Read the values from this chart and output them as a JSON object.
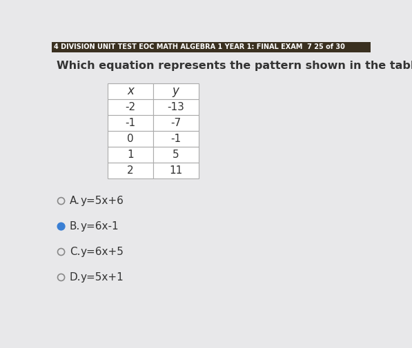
{
  "header_text": "4 DIVISION UNIT TEST EOC MATH ALGEBRA 1 YEAR 1: FINAL EXAM  7 25 of 30",
  "question_text": "Which equation represents the pattern shown in the table?",
  "table_headers": [
    "x",
    "y"
  ],
  "table_data": [
    [
      "-2",
      "-13"
    ],
    [
      "-1",
      "-7"
    ],
    [
      "0",
      "-1"
    ],
    [
      "1",
      "5"
    ],
    [
      "2",
      "11"
    ]
  ],
  "options": [
    {
      "label": "A.",
      "equation": "y=5x+6",
      "selected": false
    },
    {
      "label": "B.",
      "equation": "y=6x-1",
      "selected": true
    },
    {
      "label": "C.",
      "equation": "y=6x+5",
      "selected": false
    },
    {
      "label": "D.",
      "equation": "y=5x+1",
      "selected": false
    }
  ],
  "header_bg": "#3a3020",
  "header_text_color": "#ffffff",
  "body_bg": "#e8e8ea",
  "selected_color": "#3a7fd4",
  "unselected_color": "#888888",
  "table_bg": "#ffffff",
  "table_border_color": "#aaaaaa",
  "text_color": "#333333"
}
